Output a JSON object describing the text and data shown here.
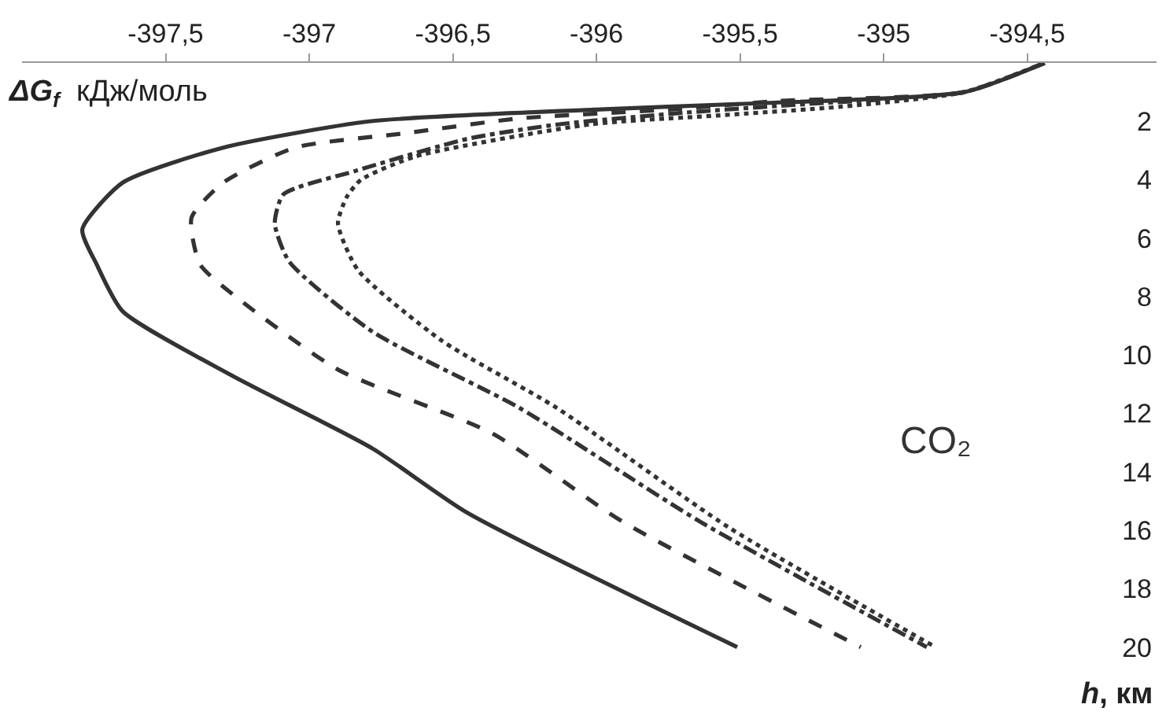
{
  "chart_data": {
    "type": "line",
    "xlabel": "ΔG$_{f}$ кДж/моль",
    "ylabel": "h, км",
    "annotations": [
      "CO₂"
    ],
    "xlim": [
      -398.0,
      -394.05
    ],
    "xticks": [
      {
        "value": -397.5,
        "label": "-397,5"
      },
      -397,
      {
        "value": -396.5,
        "label": "-396,5"
      },
      -396,
      {
        "value": -395.5,
        "label": "-395,5"
      },
      -395,
      {
        "value": -394.5,
        "label": "-394,5"
      }
    ],
    "ylim": [
      22.3,
      0
    ],
    "yticks": [
      2,
      4,
      6,
      8,
      10,
      12,
      14,
      16,
      18,
      20
    ],
    "marker": "none",
    "series": [
      {
        "color": "#333333",
        "line_style": "solid",
        "x": [
          -394.44,
          -394.72,
          -395.49,
          -396.01,
          -396.79,
          -397.3,
          -397.65,
          -397.79,
          -397.74,
          -397.65,
          -397.27,
          -396.78,
          -396.45,
          -395.51
        ],
        "values": [
          0,
          1.0,
          1.4,
          1.6,
          2.0,
          2.9,
          4.1,
          5.7,
          6.9,
          8.5,
          10.7,
          13.2,
          15.4,
          20
        ]
      },
      {
        "color": "#333333",
        "line_style": "dashed",
        "x": [
          -394.44,
          -394.72,
          -395.36,
          -395.75,
          -396.27,
          -396.66,
          -397.05,
          -397.3,
          -397.41,
          -397.38,
          -397.23,
          -396.9,
          -396.36,
          -395.91,
          -395.08
        ],
        "values": [
          0,
          1.0,
          1.3,
          1.6,
          1.9,
          2.4,
          2.9,
          4.1,
          5.3,
          6.9,
          8.2,
          10.5,
          12.7,
          15.7,
          20
        ]
      },
      {
        "color": "#333333",
        "line_style": "dashdot",
        "x": [
          -394.44,
          -394.72,
          -395.26,
          -395.69,
          -396.13,
          -396.45,
          -396.84,
          -397.09,
          -397.12,
          -397.07,
          -396.78,
          -396.27,
          -395.64,
          -394.85
        ],
        "values": [
          0,
          1.0,
          1.4,
          1.7,
          2.1,
          2.6,
          3.7,
          4.5,
          5.5,
          6.8,
          9.2,
          11.8,
          15.7,
          20
        ]
      },
      {
        "color": "#333333",
        "line_style": "dotted",
        "x": [
          -394.44,
          -394.72,
          -395.15,
          -395.58,
          -396.02,
          -396.63,
          -396.82,
          -396.87,
          -396.9,
          -396.83,
          -396.54,
          -396.14,
          -395.54,
          -394.82
        ],
        "values": [
          0,
          1.0,
          1.5,
          1.8,
          2.1,
          3.2,
          4.0,
          4.6,
          5.5,
          7.1,
          9.5,
          11.8,
          15.9,
          20
        ]
      }
    ]
  }
}
